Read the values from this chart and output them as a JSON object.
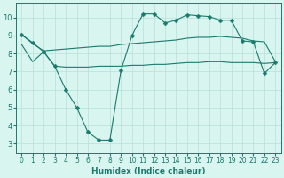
{
  "line1_x": [
    0,
    1,
    2,
    3,
    4,
    5,
    6,
    7,
    8,
    9,
    10,
    11,
    12,
    13,
    14,
    15,
    16,
    17,
    18,
    19,
    20,
    21,
    22,
    23
  ],
  "line1_y": [
    9.05,
    8.6,
    8.1,
    7.3,
    6.0,
    5.0,
    3.65,
    3.2,
    3.2,
    7.05,
    9.0,
    10.2,
    10.2,
    9.7,
    9.85,
    10.15,
    10.1,
    10.05,
    9.85,
    9.85,
    8.7,
    8.65,
    6.9,
    7.5
  ],
  "line2_x": [
    0,
    1,
    2,
    3,
    4,
    5,
    6,
    7,
    8,
    9,
    10,
    11,
    12,
    13,
    14,
    15,
    16,
    17,
    18,
    19,
    20,
    21,
    22,
    23
  ],
  "line2_y": [
    9.05,
    8.55,
    8.15,
    8.2,
    8.25,
    8.3,
    8.35,
    8.4,
    8.4,
    8.5,
    8.55,
    8.6,
    8.65,
    8.7,
    8.75,
    8.85,
    8.9,
    8.9,
    8.95,
    8.9,
    8.85,
    8.7,
    8.65,
    7.55
  ],
  "line3_x": [
    0,
    1,
    2,
    3,
    4,
    5,
    6,
    7,
    8,
    9,
    10,
    11,
    12,
    13,
    14,
    15,
    16,
    17,
    18,
    19,
    20,
    21,
    22,
    23
  ],
  "line3_y": [
    8.5,
    7.55,
    8.1,
    7.3,
    7.25,
    7.25,
    7.25,
    7.3,
    7.3,
    7.3,
    7.35,
    7.35,
    7.4,
    7.4,
    7.45,
    7.5,
    7.5,
    7.55,
    7.55,
    7.5,
    7.5,
    7.5,
    7.45,
    7.5
  ],
  "line_color": "#1a7a6e",
  "bg_color": "#d8f5f0",
  "grid_color": "#b8e0da",
  "xlabel": "Humidex (Indice chaleur)",
  "ylim": [
    2.5,
    10.8
  ],
  "xlim": [
    -0.5,
    23.5
  ],
  "yticks": [
    3,
    4,
    5,
    6,
    7,
    8,
    9,
    10
  ],
  "xticks": [
    0,
    1,
    2,
    3,
    4,
    5,
    6,
    7,
    8,
    9,
    10,
    11,
    12,
    13,
    14,
    15,
    16,
    17,
    18,
    19,
    20,
    21,
    22,
    23
  ],
  "marker_size": 2.5,
  "line_width": 0.8,
  "tick_fontsize": 5.5,
  "xlabel_fontsize": 6.5
}
